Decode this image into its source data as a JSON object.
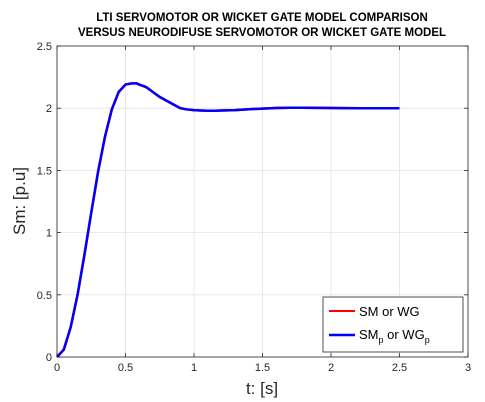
{
  "chart_data": {
    "type": "line",
    "title_lines": [
      "LTI SERVOMOTOR OR WICKET GATE MODEL COMPARISON",
      "VERSUS NEURODIFUSE SERVOMOTOR OR WICKET GATE MODEL"
    ],
    "xlabel": "t: [s]",
    "ylabel": "Sm: [p.u]",
    "xlim": [
      0,
      3
    ],
    "ylim": [
      0,
      2.5
    ],
    "xticks": [
      0,
      0.5,
      1,
      1.5,
      2,
      2.5,
      3
    ],
    "xtick_labels": [
      "0",
      "0.5",
      "1",
      "1.5",
      "2",
      "2.5",
      "3"
    ],
    "yticks": [
      0,
      0.5,
      1,
      1.5,
      2,
      2.5
    ],
    "ytick_labels": [
      "0",
      "0.5",
      "1",
      "1.5",
      "2",
      "2.5"
    ],
    "grid": true,
    "legend_position": "bottom-right",
    "legend": {
      "sm_main": "SM",
      "sm_rest": " or WG",
      "smp_main": "SM",
      "smp_sub": "p",
      "smp_mid": " or WG",
      "smp_sub2": "p"
    },
    "series": [
      {
        "id": "sm",
        "color": "#ff0000",
        "x": [
          0,
          0.05,
          0.1,
          0.15,
          0.2,
          0.25,
          0.3,
          0.35,
          0.4,
          0.45,
          0.5,
          0.55,
          0.58,
          0.6,
          0.65,
          0.7,
          0.75,
          0.8,
          0.85,
          0.9,
          0.95,
          1.0,
          1.05,
          1.1,
          1.15,
          1.2,
          1.3,
          1.4,
          1.5,
          1.6,
          1.7,
          1.8,
          1.9,
          2.0,
          2.1,
          2.2,
          2.3,
          2.4,
          2.5
        ],
        "y": [
          0,
          0.06,
          0.24,
          0.5,
          0.82,
          1.16,
          1.49,
          1.77,
          1.99,
          2.13,
          2.19,
          2.2,
          2.2,
          2.19,
          2.17,
          2.13,
          2.09,
          2.06,
          2.03,
          2.0,
          1.99,
          1.985,
          1.982,
          1.98,
          1.98,
          1.981,
          1.985,
          1.992,
          1.997,
          2.002,
          2.004,
          2.004,
          2.003,
          2.002,
          2.001,
          2.0,
          2.0,
          2.0,
          2.0
        ]
      },
      {
        "id": "smp",
        "color": "#0000ff",
        "x": [
          0,
          0.05,
          0.1,
          0.15,
          0.2,
          0.25,
          0.3,
          0.35,
          0.4,
          0.45,
          0.5,
          0.55,
          0.58,
          0.6,
          0.65,
          0.7,
          0.75,
          0.8,
          0.85,
          0.9,
          0.95,
          1.0,
          1.05,
          1.1,
          1.15,
          1.2,
          1.3,
          1.4,
          1.5,
          1.6,
          1.7,
          1.8,
          1.9,
          2.0,
          2.1,
          2.2,
          2.3,
          2.4,
          2.5
        ],
        "y": [
          0,
          0.06,
          0.24,
          0.5,
          0.82,
          1.16,
          1.49,
          1.77,
          1.99,
          2.13,
          2.19,
          2.2,
          2.2,
          2.19,
          2.17,
          2.13,
          2.09,
          2.06,
          2.03,
          2.0,
          1.99,
          1.985,
          1.982,
          1.98,
          1.98,
          1.981,
          1.985,
          1.992,
          1.997,
          2.002,
          2.004,
          2.004,
          2.003,
          2.002,
          2.001,
          2.0,
          2.0,
          2.0,
          2.0
        ]
      }
    ]
  }
}
